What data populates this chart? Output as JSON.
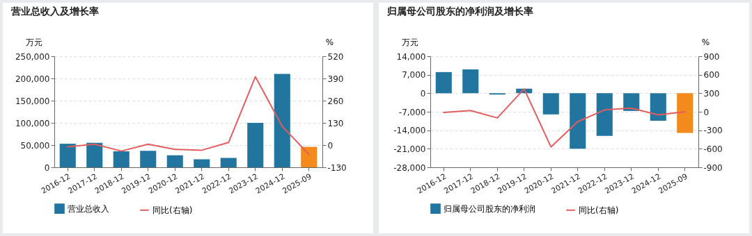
{
  "chart_data": [
    {
      "type": "bar",
      "title": "营业总收入及增长率",
      "ylabel": "万元",
      "y2label": "%",
      "categories": [
        "2016-12",
        "2017-12",
        "2018-12",
        "2019-12",
        "2020-12",
        "2021-12",
        "2022-12",
        "2023-12",
        "2024-12",
        "2025-09"
      ],
      "series": [
        {
          "name": "营业总收入",
          "color": "#21759f",
          "colors": [
            "#21759f",
            "#21759f",
            "#21759f",
            "#21759f",
            "#21759f",
            "#21759f",
            "#21759f",
            "#21759f",
            "#21759f",
            "#f28a1c"
          ],
          "values": [
            53000,
            55000,
            36000,
            37000,
            27000,
            18000,
            21000,
            100000,
            210000,
            46000
          ]
        },
        {
          "name": "同比(右轴)",
          "type": "line",
          "axis": "y2",
          "color": "#e35d5d",
          "values": [
            -10,
            5,
            -35,
            5,
            -25,
            -30,
            15,
            400,
            110,
            -55
          ]
        }
      ],
      "ylim": [
        0,
        250000
      ],
      "yticks": [
        0,
        {
          "value": 50000,
          "label": "50,000"
        },
        {
          "value": 100000,
          "label": "100,000"
        },
        {
          "value": 150000,
          "label": "150,000"
        },
        {
          "value": 200000,
          "label": "200,000"
        },
        {
          "value": 250000,
          "label": "250,000"
        }
      ],
      "y2lim": [
        -130,
        520
      ],
      "y2ticks": [
        -130,
        0,
        130,
        260,
        390,
        520
      ],
      "grid": "y",
      "legend": "bottom"
    },
    {
      "type": "bar",
      "title": "归属母公司股东的净利润及增长率",
      "ylabel": "万元",
      "y2label": "%",
      "categories": [
        "2016-12",
        "2017-12",
        "2018-12",
        "2019-12",
        "2020-12",
        "2021-12",
        "2022-12",
        "2023-12",
        "2024-12",
        "2025-09"
      ],
      "series": [
        {
          "name": "归属母公司股东的净利润",
          "color": "#21759f",
          "colors": [
            "#21759f",
            "#21759f",
            "#21759f",
            "#21759f",
            "#21759f",
            "#21759f",
            "#21759f",
            "#21759f",
            "#21759f",
            "#f28a1c"
          ],
          "values": [
            8000,
            9000,
            -500,
            1700,
            -8000,
            -21000,
            -16100,
            -6700,
            -10400,
            -15000
          ]
        },
        {
          "name": "同比(右轴)",
          "type": "line",
          "axis": "y2",
          "color": "#e35d5d",
          "values": [
            -10,
            20,
            -100,
            370,
            -570,
            -160,
            30,
            60,
            -50,
            0
          ]
        }
      ],
      "ylim": [
        -28000,
        14000
      ],
      "yticks": [
        {
          "value": -28000,
          "label": "-28,000"
        },
        {
          "value": -21000,
          "label": "-21,000"
        },
        {
          "value": -14000,
          "label": "-14,000"
        },
        {
          "value": -7000,
          "label": "-7,000"
        },
        0,
        {
          "value": 7000,
          "label": "7,000"
        },
        {
          "value": 14000,
          "label": "14,000"
        }
      ],
      "y2lim": [
        -900,
        900
      ],
      "y2ticks": [
        -900,
        -600,
        -300,
        0,
        300,
        600,
        900
      ],
      "grid": "y",
      "legend": "bottom"
    }
  ]
}
